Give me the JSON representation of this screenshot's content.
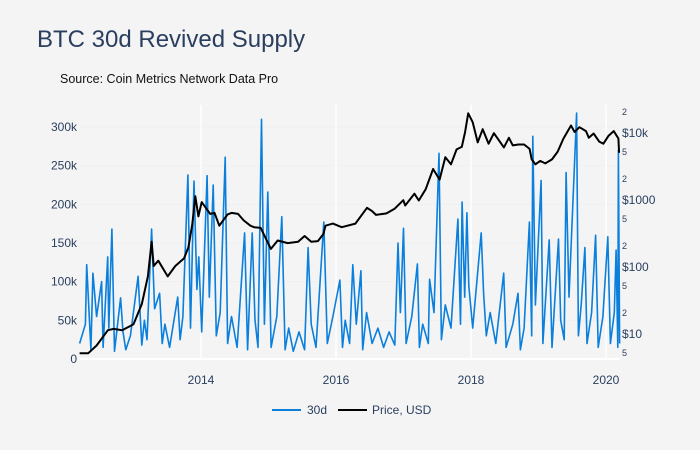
{
  "title": "BTC 30d Revived Supply",
  "subtitle": "Source: Coin Metrics Network Data Pro",
  "chart_data": {
    "type": "line",
    "title": "BTC 30d Revived Supply",
    "x_ticks": [
      "2014",
      "2016",
      "2018",
      "2020"
    ],
    "x_range": [
      "2012-03-15",
      "2020-03-15"
    ],
    "y_left": {
      "range": [
        0,
        300000
      ],
      "scale": "linear",
      "ticks": [
        0,
        50000,
        100000,
        150000,
        200000,
        250000,
        300000
      ],
      "tick_labels": [
        "0",
        "50k",
        "100k",
        "150k",
        "200k",
        "250k",
        "300k"
      ]
    },
    "y_right": {
      "scale": "log",
      "major_ticks": [
        10,
        100,
        1000,
        10000
      ],
      "major_labels": [
        "$10",
        "$100",
        "$1000",
        "$10k"
      ],
      "minor_labels": [
        "5",
        "2",
        "5",
        "2",
        "5",
        "2",
        "5",
        "2"
      ],
      "minor_values": [
        5,
        20,
        50,
        200,
        500,
        2000,
        5000,
        20000
      ]
    },
    "grid": "vertical",
    "legend_position": "bottom",
    "colors": {
      "30d": "#0a7fdc",
      "price": "#000000",
      "text": "#2a3f5f",
      "background": "#f4f4f4"
    },
    "series": [
      {
        "name": "30d",
        "axis": "left",
        "points": [
          [
            "2012-03-15",
            20000
          ],
          [
            "2012-04-15",
            45000
          ],
          [
            "2012-04-22",
            122000
          ],
          [
            "2012-05-15",
            12000
          ],
          [
            "2012-05-26",
            111000
          ],
          [
            "2012-06-15",
            55000
          ],
          [
            "2012-07-12",
            100000
          ],
          [
            "2012-07-20",
            15000
          ],
          [
            "2012-08-14",
            132000
          ],
          [
            "2012-08-20",
            40000
          ],
          [
            "2012-09-06",
            168000
          ],
          [
            "2012-09-20",
            10000
          ],
          [
            "2012-10-23",
            79000
          ],
          [
            "2012-11-05",
            35000
          ],
          [
            "2012-11-20",
            12000
          ],
          [
            "2012-12-15",
            30000
          ],
          [
            "2013-01-26",
            107000
          ],
          [
            "2013-02-15",
            18000
          ],
          [
            "2013-03-01",
            50000
          ],
          [
            "2013-03-15",
            25000
          ],
          [
            "2013-04-09",
            168000
          ],
          [
            "2013-04-25",
            65000
          ],
          [
            "2013-05-22",
            85000
          ],
          [
            "2013-06-05",
            20000
          ],
          [
            "2013-06-20",
            45000
          ],
          [
            "2013-07-15",
            15000
          ],
          [
            "2013-08-28",
            80000
          ],
          [
            "2013-09-10",
            25000
          ],
          [
            "2013-09-25",
            55000
          ],
          [
            "2013-10-22",
            238000
          ],
          [
            "2013-11-05",
            40000
          ],
          [
            "2013-11-24",
            230000
          ],
          [
            "2013-12-10",
            90000
          ],
          [
            "2013-12-20",
            132000
          ],
          [
            "2014-01-05",
            35000
          ],
          [
            "2014-02-03",
            237000
          ],
          [
            "2014-02-15",
            80000
          ],
          [
            "2014-03-08",
            225000
          ],
          [
            "2014-03-25",
            30000
          ],
          [
            "2014-04-15",
            60000
          ],
          [
            "2014-05-12",
            261000
          ],
          [
            "2014-05-25",
            20000
          ],
          [
            "2014-06-15",
            55000
          ],
          [
            "2014-07-15",
            15000
          ],
          [
            "2014-08-25",
            163000
          ],
          [
            "2014-09-10",
            12000
          ],
          [
            "2014-10-05",
            163000
          ],
          [
            "2014-10-20",
            50000
          ],
          [
            "2014-11-05",
            15000
          ],
          [
            "2014-11-24",
            310000
          ],
          [
            "2014-12-10",
            45000
          ],
          [
            "2014-12-28",
            216000
          ],
          [
            "2015-01-15",
            15000
          ],
          [
            "2015-02-15",
            55000
          ],
          [
            "2015-03-14",
            184000
          ],
          [
            "2015-04-01",
            12000
          ],
          [
            "2015-04-20",
            40000
          ],
          [
            "2015-05-15",
            10000
          ],
          [
            "2015-06-15",
            35000
          ],
          [
            "2015-07-15",
            12000
          ],
          [
            "2015-08-03",
            144000
          ],
          [
            "2015-08-20",
            45000
          ],
          [
            "2015-09-15",
            15000
          ],
          [
            "2015-10-27",
            177000
          ],
          [
            "2015-11-15",
            20000
          ],
          [
            "2015-12-15",
            55000
          ],
          [
            "2016-01-22",
            102000
          ],
          [
            "2016-02-05",
            15000
          ],
          [
            "2016-02-20",
            50000
          ],
          [
            "2016-03-15",
            20000
          ],
          [
            "2016-04-01",
            122000
          ],
          [
            "2016-04-20",
            45000
          ],
          [
            "2016-05-15",
            114000
          ],
          [
            "2016-05-25",
            12000
          ],
          [
            "2016-06-15",
            60000
          ],
          [
            "2016-07-15",
            20000
          ],
          [
            "2016-08-15",
            40000
          ],
          [
            "2016-09-15",
            15000
          ],
          [
            "2016-10-15",
            35000
          ],
          [
            "2016-11-15",
            18000
          ],
          [
            "2016-12-02",
            150000
          ],
          [
            "2016-12-15",
            60000
          ],
          [
            "2017-01-01",
            169000
          ],
          [
            "2017-01-15",
            20000
          ],
          [
            "2017-02-15",
            55000
          ],
          [
            "2017-03-17",
            123000
          ],
          [
            "2017-03-28",
            15000
          ],
          [
            "2017-04-15",
            45000
          ],
          [
            "2017-05-15",
            20000
          ],
          [
            "2017-05-22",
            103000
          ],
          [
            "2017-06-15",
            60000
          ],
          [
            "2017-07-12",
            266000
          ],
          [
            "2017-07-25",
            25000
          ],
          [
            "2017-08-15",
            70000
          ],
          [
            "2017-09-15",
            40000
          ],
          [
            "2017-10-22",
            181000
          ],
          [
            "2017-11-05",
            45000
          ],
          [
            "2017-11-14",
            203000
          ],
          [
            "2017-11-28",
            80000
          ],
          [
            "2017-12-10",
            189000
          ],
          [
            "2017-12-20",
            95000
          ],
          [
            "2018-01-10",
            40000
          ],
          [
            "2018-02-25",
            163000
          ],
          [
            "2018-03-10",
            85000
          ],
          [
            "2018-03-25",
            30000
          ],
          [
            "2018-04-15",
            60000
          ],
          [
            "2018-05-15",
            20000
          ],
          [
            "2018-06-27",
            111000
          ],
          [
            "2018-07-10",
            15000
          ],
          [
            "2018-08-15",
            45000
          ],
          [
            "2018-09-12",
            85000
          ],
          [
            "2018-09-25",
            12000
          ],
          [
            "2018-10-15",
            40000
          ],
          [
            "2018-11-13",
            177000
          ],
          [
            "2018-11-25",
            30000
          ],
          [
            "2018-12-01",
            288000
          ],
          [
            "2018-12-15",
            70000
          ],
          [
            "2019-01-15",
            231000
          ],
          [
            "2019-01-25",
            20000
          ],
          [
            "2019-02-28",
            154000
          ],
          [
            "2019-03-15",
            15000
          ],
          [
            "2019-04-19",
            155000
          ],
          [
            "2019-05-01",
            50000
          ],
          [
            "2019-05-20",
            25000
          ],
          [
            "2019-05-30",
            241000
          ],
          [
            "2019-06-15",
            80000
          ],
          [
            "2019-07-26",
            318000
          ],
          [
            "2019-08-05",
            30000
          ],
          [
            "2019-08-20",
            70000
          ],
          [
            "2019-09-09",
            144000
          ],
          [
            "2019-09-20",
            20000
          ],
          [
            "2019-10-15",
            60000
          ],
          [
            "2019-11-06",
            160000
          ],
          [
            "2019-11-20",
            15000
          ],
          [
            "2019-12-15",
            55000
          ],
          [
            "2020-01-11",
            158000
          ],
          [
            "2020-01-25",
            20000
          ],
          [
            "2020-02-15",
            60000
          ],
          [
            "2020-02-25",
            141000
          ],
          [
            "2020-03-05",
            15000
          ],
          [
            "2020-03-08",
            270000
          ],
          [
            "2020-03-15",
            20000
          ]
        ]
      },
      {
        "name": "Price, USD",
        "axis": "right",
        "points": [
          [
            "2012-03-15",
            5
          ],
          [
            "2012-05-01",
            5
          ],
          [
            "2012-06-15",
            6.5
          ],
          [
            "2012-08-15",
            11
          ],
          [
            "2012-09-15",
            11.5
          ],
          [
            "2012-11-01",
            11
          ],
          [
            "2013-01-01",
            13.5
          ],
          [
            "2013-02-15",
            27
          ],
          [
            "2013-03-20",
            70
          ],
          [
            "2013-04-09",
            230
          ],
          [
            "2013-04-20",
            100
          ],
          [
            "2013-05-15",
            120
          ],
          [
            "2013-07-05",
            70
          ],
          [
            "2013-08-15",
            100
          ],
          [
            "2013-10-01",
            130
          ],
          [
            "2013-10-25",
            190
          ],
          [
            "2013-11-15",
            420
          ],
          [
            "2013-12-01",
            1100
          ],
          [
            "2013-12-18",
            550
          ],
          [
            "2014-01-05",
            900
          ],
          [
            "2014-02-20",
            600
          ],
          [
            "2014-03-15",
            620
          ],
          [
            "2014-04-10",
            400
          ],
          [
            "2014-05-25",
            590
          ],
          [
            "2014-06-15",
            620
          ],
          [
            "2014-07-20",
            600
          ],
          [
            "2014-08-20",
            480
          ],
          [
            "2014-09-25",
            400
          ],
          [
            "2014-10-15",
            380
          ],
          [
            "2014-11-20",
            370
          ],
          [
            "2015-01-14",
            180
          ],
          [
            "2015-02-20",
            240
          ],
          [
            "2015-04-15",
            220
          ],
          [
            "2015-06-10",
            230
          ],
          [
            "2015-07-15",
            280
          ],
          [
            "2015-08-20",
            230
          ],
          [
            "2015-09-25",
            235
          ],
          [
            "2015-10-25",
            300
          ],
          [
            "2015-11-05",
            400
          ],
          [
            "2015-12-15",
            430
          ],
          [
            "2016-02-01",
            380
          ],
          [
            "2016-04-15",
            430
          ],
          [
            "2016-06-17",
            740
          ],
          [
            "2016-07-15",
            660
          ],
          [
            "2016-08-05",
            580
          ],
          [
            "2016-10-01",
            610
          ],
          [
            "2016-11-15",
            720
          ],
          [
            "2016-12-31",
            960
          ],
          [
            "2017-01-10",
            800
          ],
          [
            "2017-03-01",
            1200
          ],
          [
            "2017-03-25",
            950
          ],
          [
            "2017-05-01",
            1400
          ],
          [
            "2017-06-10",
            2800
          ],
          [
            "2017-07-15",
            1950
          ],
          [
            "2017-08-15",
            4200
          ],
          [
            "2017-09-15",
            3300
          ],
          [
            "2017-10-15",
            5500
          ],
          [
            "2017-11-12",
            6000
          ],
          [
            "2017-11-30",
            10000
          ],
          [
            "2017-12-17",
            19000
          ],
          [
            "2018-01-10",
            14000
          ],
          [
            "2018-02-06",
            7000
          ],
          [
            "2018-03-05",
            11000
          ],
          [
            "2018-04-06",
            6700
          ],
          [
            "2018-05-05",
            9600
          ],
          [
            "2018-06-28",
            5900
          ],
          [
            "2018-07-25",
            8200
          ],
          [
            "2018-08-15",
            6300
          ],
          [
            "2018-09-15",
            6500
          ],
          [
            "2018-10-15",
            6500
          ],
          [
            "2018-11-14",
            5600
          ],
          [
            "2018-11-25",
            3900
          ],
          [
            "2018-12-15",
            3300
          ],
          [
            "2019-01-10",
            3700
          ],
          [
            "2019-02-07",
            3400
          ],
          [
            "2019-03-15",
            3900
          ],
          [
            "2019-04-15",
            5100
          ],
          [
            "2019-05-15",
            7900
          ],
          [
            "2019-06-26",
            12500
          ],
          [
            "2019-07-15",
            10000
          ],
          [
            "2019-08-10",
            11800
          ],
          [
            "2019-09-15",
            10300
          ],
          [
            "2019-09-30",
            8200
          ],
          [
            "2019-10-26",
            9500
          ],
          [
            "2019-11-25",
            7200
          ],
          [
            "2019-12-18",
            6700
          ],
          [
            "2020-01-15",
            8800
          ],
          [
            "2020-02-12",
            10300
          ],
          [
            "2020-03-01",
            8600
          ],
          [
            "2020-03-08",
            8000
          ],
          [
            "2020-03-12",
            4900
          ]
        ]
      }
    ]
  },
  "legend": {
    "items": [
      {
        "label": "30d"
      },
      {
        "label": "Price, USD"
      }
    ]
  }
}
